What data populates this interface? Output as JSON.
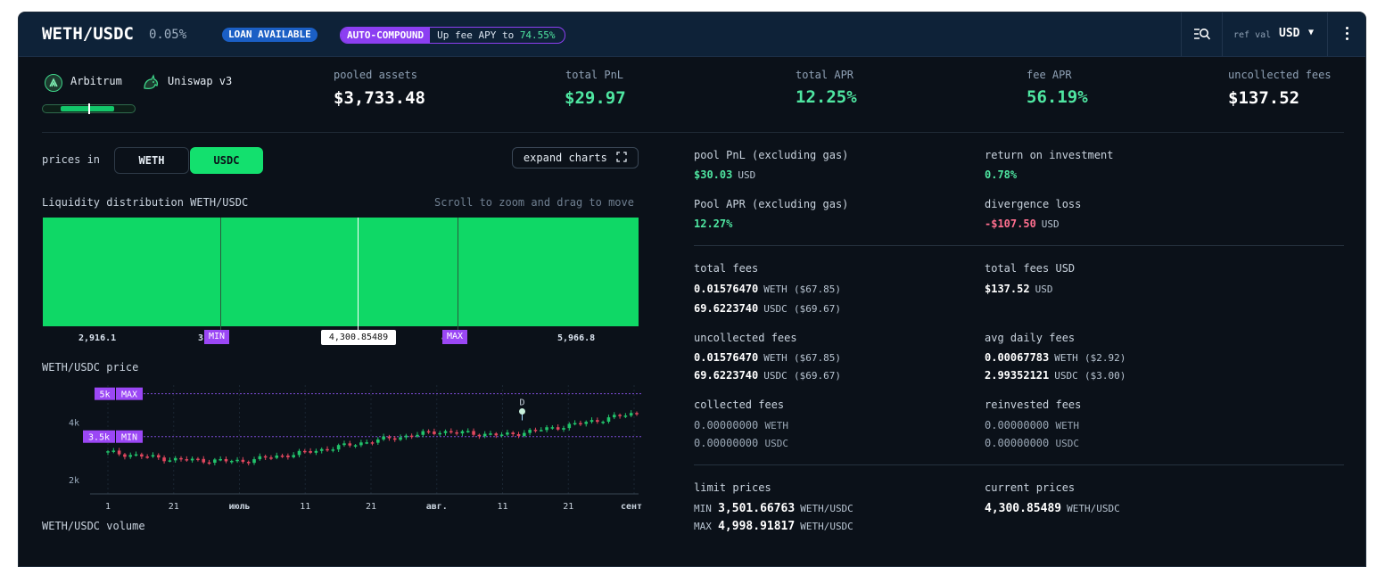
{
  "header": {
    "pair": "WETH/USDC",
    "fee_tier": "0.05%",
    "loan_badge": "LOAN AVAILABLE",
    "auto_compound_badge": "AUTO-COMPOUND",
    "fee_apy_text": "Up fee APY to",
    "fee_apy_value": "74.55%",
    "ref_val_label": "ref val",
    "ref_val_currency": "USD",
    "icons": [
      "search-list-icon",
      "chevron-down-icon",
      "more-vertical-icon"
    ]
  },
  "pool": {
    "chain": "Arbitrum",
    "dex": "Uniswap v3",
    "icons": [
      "arbitrum-icon",
      "uniswap-unicorn-icon"
    ],
    "range_position": 0.5
  },
  "stats": [
    {
      "label": "pooled assets",
      "value": "$3,733.48"
    },
    {
      "label": "total PnL",
      "value": "$29.97"
    },
    {
      "label": "total APR",
      "value": "12.25%"
    },
    {
      "label": "fee APR",
      "value": "56.19%"
    },
    {
      "label": "uncollected fees",
      "value": "$137.52"
    }
  ],
  "controls": {
    "prices_in_label": "prices in",
    "toggle_options": [
      "WETH",
      "USDC"
    ],
    "toggle_selected": "USDC",
    "expand_label": "expand charts",
    "expand_icon": "expand-icon"
  },
  "liquidity": {
    "title": "Liquidity distribution WETH/USDC",
    "hint": "Scroll to zoom and drag to move",
    "x_labels": [
      "2,916.1",
      "3",
      "4",
      "5,966.8"
    ],
    "min_tag": "MIN",
    "max_tag": "MAX",
    "current_price_tag": "4,300.85489",
    "fill_color": "#0fd866"
  },
  "price_chart": {
    "title": "WETH/USDC price",
    "y_ticks": [
      "4k",
      "2k"
    ],
    "max_line_label": "5k",
    "max_tag": "MAX",
    "min_line_label": "3.5k",
    "min_tag": "MIN",
    "marker_label": "D",
    "x_ticks": [
      "1",
      "21",
      "июль",
      "11",
      "21",
      "авг.",
      "11",
      "21",
      "сент."
    ],
    "up_color": "#22c36b",
    "down_color": "#e0475e"
  },
  "chart_data": {
    "type": "line",
    "title": "WETH/USDC price",
    "xlabel": "",
    "ylabel": "",
    "ylim": [
      1500,
      5300
    ],
    "x": [
      "1",
      "21",
      "июль",
      "11",
      "21",
      "авг.",
      "11",
      "21",
      "сент."
    ],
    "series": [
      {
        "values": [
          2950,
          2700,
          2640,
          2950,
          3350,
          3680,
          3550,
          3900,
          4330
        ]
      }
    ],
    "reference_lines": [
      {
        "label": "MAX",
        "value": 4999
      },
      {
        "label": "MIN",
        "value": 3502
      }
    ],
    "grid": true
  },
  "volume": {
    "title": "WETH/USDC volume"
  },
  "metrics": {
    "pool_pnl_label": "pool PnL (excluding gas)",
    "pool_pnl_value": "$30.03",
    "pool_pnl_unit": "USD",
    "roi_label": "return on investment",
    "roi_value": "0.78%",
    "pool_apr_label": "Pool APR (excluding gas)",
    "pool_apr_value": "12.27%",
    "divergence_label": "divergence loss",
    "divergence_value": "-$107.50",
    "divergence_unit": "USD"
  },
  "fees": {
    "total_label": "total fees",
    "total_weth": "0.01576470",
    "total_weth_unit": "WETH",
    "total_weth_usd": "($67.85)",
    "total_usdc": "69.6223740",
    "total_usdc_unit": "USDC",
    "total_usdc_usd": "($69.67)",
    "total_usd_label": "total fees USD",
    "total_usd_value": "$137.52",
    "total_usd_unit": "USD",
    "uncollected_label": "uncollected fees",
    "uncollected_weth": "0.01576470",
    "uncollected_weth_unit": "WETH",
    "uncollected_weth_usd": "($67.85)",
    "uncollected_usdc": "69.6223740",
    "uncollected_usdc_unit": "USDC",
    "uncollected_usdc_usd": "($69.67)",
    "avg_daily_label": "avg daily fees",
    "avg_daily_weth": "0.00067783",
    "avg_daily_weth_unit": "WETH",
    "avg_daily_weth_usd": "($2.92)",
    "avg_daily_usdc": "2.99352121",
    "avg_daily_usdc_unit": "USDC",
    "avg_daily_usdc_usd": "($3.00)",
    "collected_label": "collected fees",
    "collected_weth": "0.00000000",
    "collected_weth_unit": "WETH",
    "collected_usdc": "0.00000000",
    "collected_usdc_unit": "USDC",
    "reinvested_label": "reinvested fees",
    "reinvested_weth": "0.00000000",
    "reinvested_weth_unit": "WETH",
    "reinvested_usdc": "0.00000000",
    "reinvested_usdc_unit": "USDC"
  },
  "limits": {
    "limit_label": "limit prices",
    "min_prefix": "MIN",
    "min_value": "3,501.66763",
    "min_unit": "WETH/USDC",
    "max_prefix": "MAX",
    "max_value": "4,998.91817",
    "max_unit": "WETH/USDC",
    "current_label": "current prices",
    "current_value": "4,300.85489",
    "current_unit": "WETH/USDC"
  }
}
